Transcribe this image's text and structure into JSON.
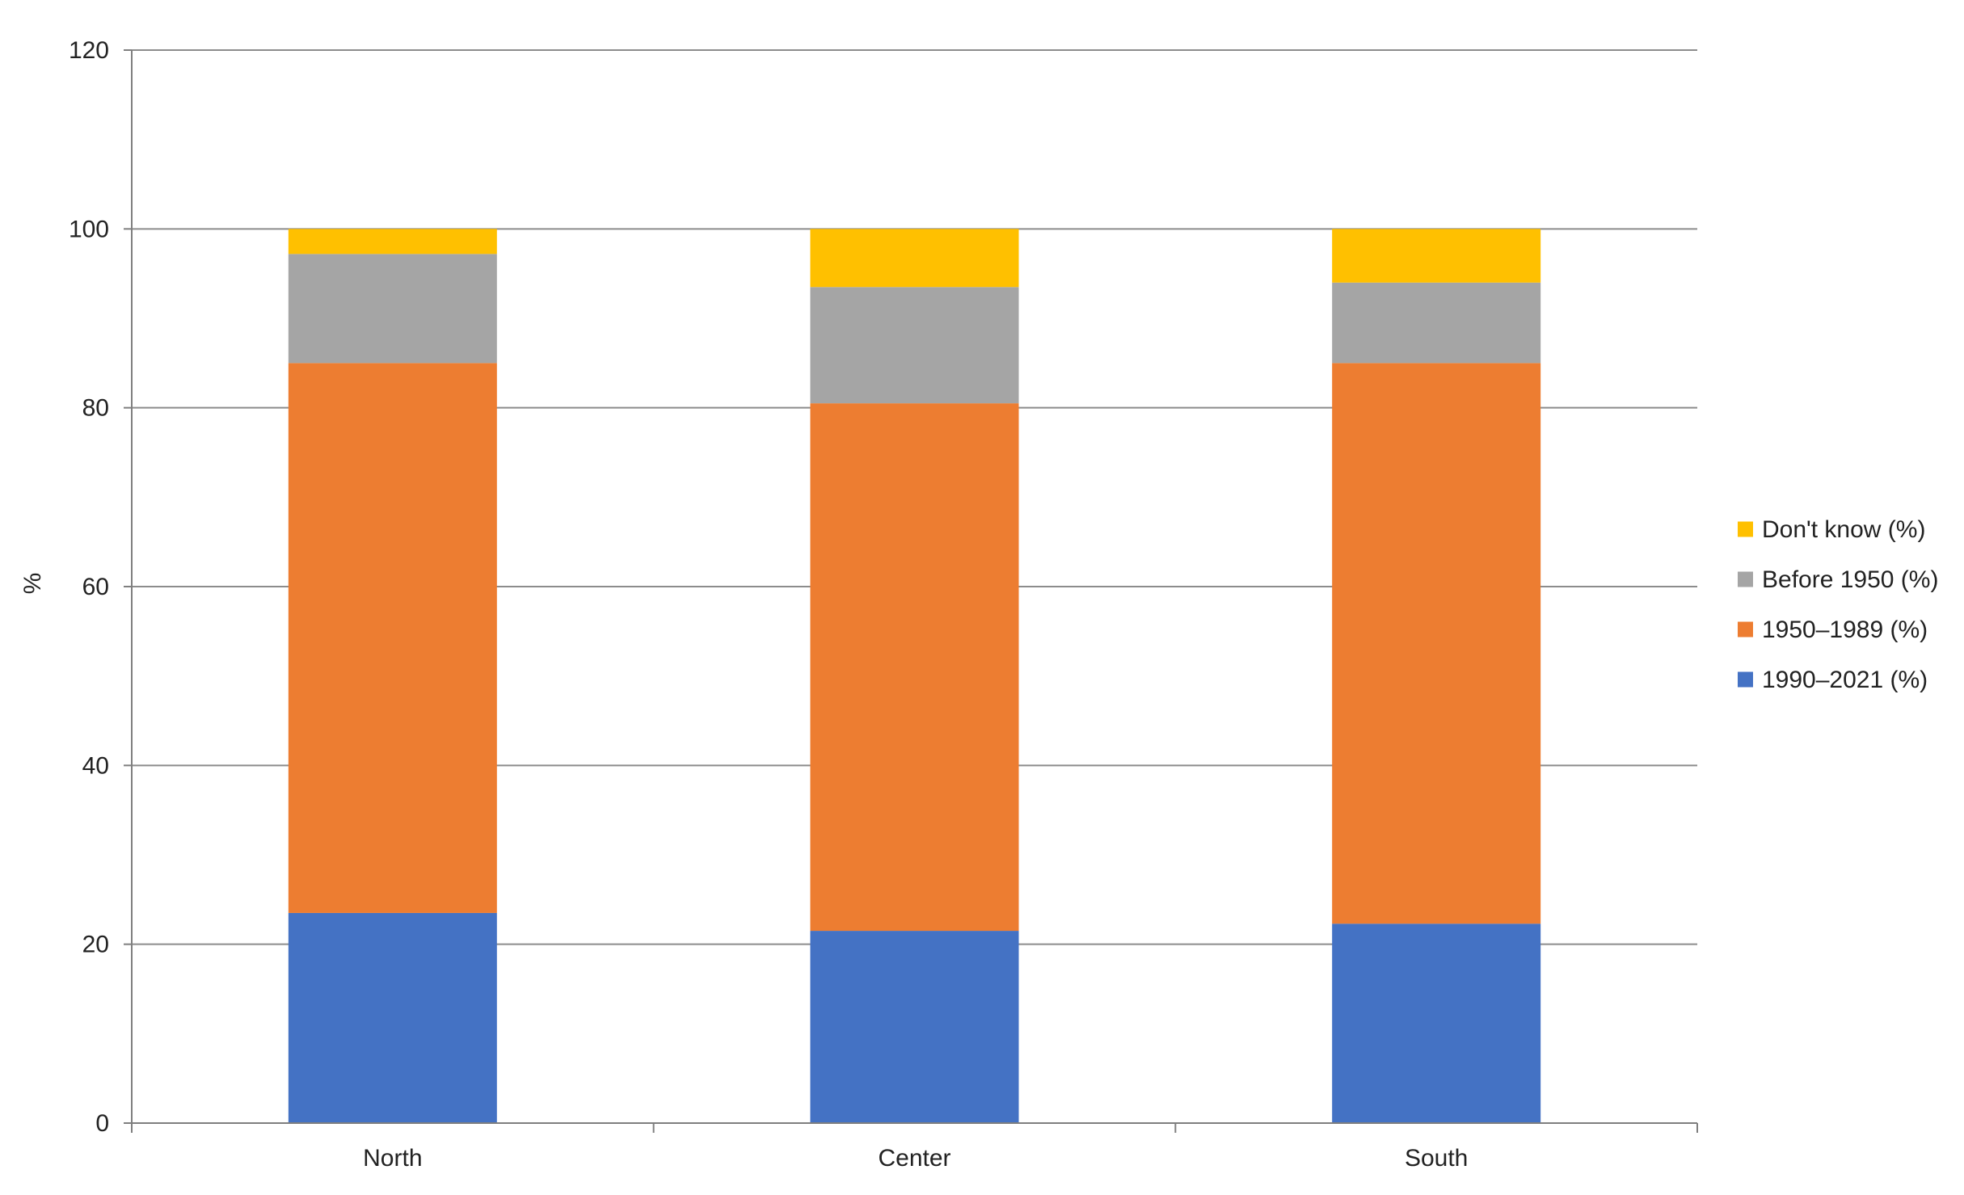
{
  "chart_data": {
    "type": "bar",
    "stacked": true,
    "categories": [
      "North",
      "Center",
      "South"
    ],
    "series": [
      {
        "name": "1990–2021 (%)",
        "values": [
          23.5,
          21.5,
          22.3
        ],
        "color": "#4472C4"
      },
      {
        "name": "1950–1989 (%)",
        "values": [
          61.5,
          59.0,
          62.7
        ],
        "color": "#ED7D31"
      },
      {
        "name": "Before 1950 (%)",
        "values": [
          12.2,
          13.0,
          9.0
        ],
        "color": "#A5A5A5"
      },
      {
        "name": "Don't know (%)",
        "values": [
          2.8,
          6.5,
          6.0
        ],
        "color": "#FFC000"
      }
    ],
    "title": "",
    "xlabel": "",
    "ylabel": "%",
    "ylim": [
      0,
      120
    ],
    "yticks": [
      "0",
      "20",
      "40",
      "60",
      "80",
      "100",
      "120"
    ],
    "grid": true,
    "legend_position": "right",
    "legend_order": [
      "Don't know (%)",
      "Before 1950 (%)",
      "1950–1989 (%)",
      "1990–2021 (%)"
    ]
  }
}
